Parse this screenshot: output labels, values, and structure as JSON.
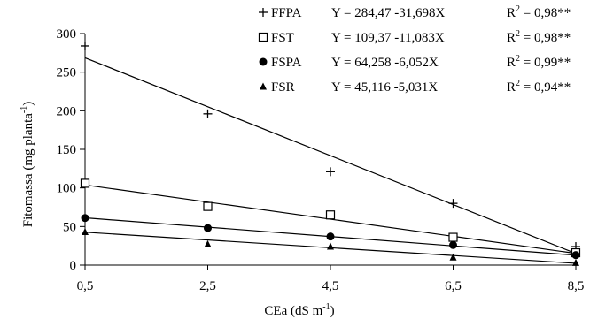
{
  "chart_data": {
    "type": "scatter",
    "xlabel": "CEa (dS m",
    "xlabel_sup": "-1",
    "xlabel_close": ")",
    "ylabel": "Fitomassa (mg planta",
    "ylabel_sup": "-1",
    "ylabel_close": ")",
    "x": [
      0.5,
      2.5,
      4.5,
      6.5,
      8.5
    ],
    "x_tick_labels": [
      "0,5",
      "2,5",
      "4,5",
      "6,5",
      "8,5"
    ],
    "y_ticks": [
      0,
      50,
      100,
      150,
      200,
      250,
      300
    ],
    "y_tick_labels": [
      "0",
      "50",
      "100",
      "150",
      "200",
      "250",
      "300"
    ],
    "xlim": [
      0.5,
      8.5
    ],
    "ylim": [
      0,
      300
    ],
    "grid": false,
    "legend_position": "top-right",
    "series": [
      {
        "name": "FFPA",
        "marker": "plus",
        "values": [
          284,
          196,
          121,
          80,
          24
        ],
        "fit": {
          "intercept": 284.47,
          "slope": -31.698
        },
        "equation": "Y = 284,47 -31,698X",
        "r2_value": "= 0,98**"
      },
      {
        "name": "FST",
        "marker": "square-open",
        "values": [
          106,
          76,
          65,
          36,
          16
        ],
        "fit": {
          "intercept": 109.37,
          "slope": -11.083
        },
        "equation": "Y = 109,37 -11,083X",
        "r2_value": "= 0,98**"
      },
      {
        "name": "FSPA",
        "marker": "circle-filled",
        "values": [
          61,
          48,
          37,
          26,
          13
        ],
        "fit": {
          "intercept": 64.258,
          "slope": -6.052
        },
        "equation": "Y = 64,258 -6,052X",
        "r2_value": "= 0,99**"
      },
      {
        "name": "FSR",
        "marker": "triangle-filled",
        "values": [
          43,
          27,
          24,
          10,
          3
        ],
        "fit": {
          "intercept": 45.116,
          "slope": -5.031
        },
        "equation": "Y = 45,116 -5,031X",
        "r2_value": "= 0,94**"
      }
    ],
    "r2_letter": "R",
    "r2_sup": "2"
  }
}
